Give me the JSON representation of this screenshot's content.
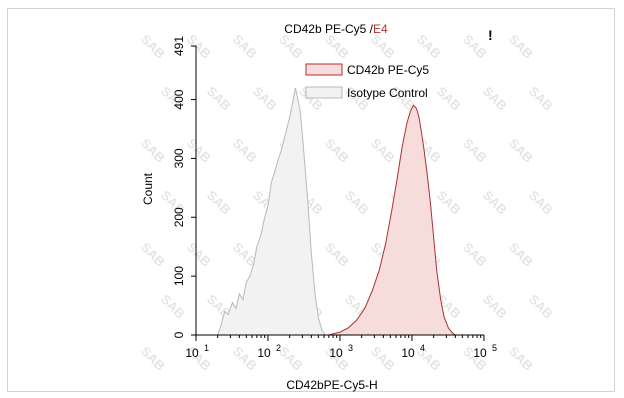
{
  "chart_data": {
    "type": "area",
    "title_main": "CD42b PE-Cy5 / ",
    "title_sample": "E4",
    "title_mark": "!",
    "xlabel": "CD42bPE-Cy5-H",
    "ylabel": "Count",
    "xscale": "log",
    "xlim": [
      10,
      100000
    ],
    "ylim": [
      0,
      491
    ],
    "x_ticks": [
      {
        "value": 10,
        "base": "10",
        "exp": "1"
      },
      {
        "value": 100,
        "base": "10",
        "exp": "2"
      },
      {
        "value": 1000,
        "base": "10",
        "exp": "3"
      },
      {
        "value": 10000,
        "base": "10",
        "exp": "4"
      },
      {
        "value": 100000,
        "base": "10",
        "exp": "5"
      }
    ],
    "y_ticks": [
      "0",
      "100",
      "200",
      "300",
      "400",
      "491"
    ],
    "legend_position": "top-right",
    "watermark": "SAB",
    "series": [
      {
        "name": "CD42b PE-Cy5",
        "stroke": "#a83232",
        "fill": "#f7dcdc",
        "x": [
          700,
          800,
          1000,
          1300,
          1700,
          2200,
          2800,
          3500,
          4300,
          5200,
          6200,
          7300,
          8500,
          9500,
          10500,
          11500,
          12500,
          13500,
          14500,
          16000,
          18000,
          20000,
          22000,
          25000,
          28000,
          32000,
          36000,
          40000
        ],
        "y": [
          0,
          2,
          5,
          12,
          25,
          45,
          75,
          110,
          155,
          210,
          265,
          320,
          360,
          380,
          390,
          385,
          370,
          345,
          320,
          280,
          225,
          165,
          110,
          60,
          30,
          12,
          4,
          0
        ]
      },
      {
        "name": "Isotype Control",
        "stroke": "#b8b8b8",
        "fill": "#f2f2f2",
        "x": [
          20,
          22,
          25,
          28,
          32,
          36,
          40,
          45,
          50,
          56,
          63,
          70,
          80,
          90,
          100,
          112,
          126,
          141,
          158,
          178,
          200,
          220,
          240,
          260,
          280,
          300,
          330,
          360,
          400,
          450,
          500,
          560,
          630
        ],
        "y": [
          0,
          15,
          40,
          35,
          55,
          45,
          70,
          60,
          90,
          100,
          120,
          150,
          170,
          200,
          220,
          260,
          280,
          300,
          320,
          345,
          370,
          395,
          420,
          400,
          380,
          340,
          280,
          220,
          140,
          70,
          30,
          8,
          0
        ]
      }
    ]
  }
}
